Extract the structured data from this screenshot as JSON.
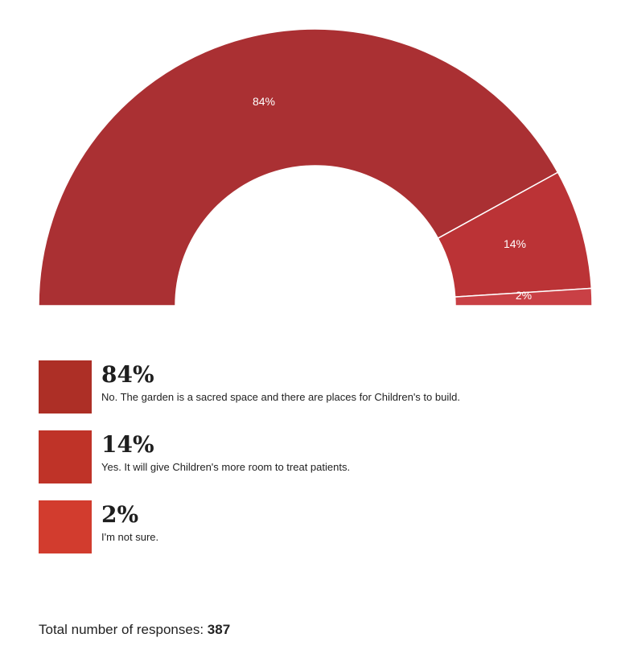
{
  "chart_data": {
    "type": "pie",
    "variant": "semi-donut",
    "slices": [
      {
        "label": "No. The garden is a sacred space and there are places for Children's to build.",
        "value": 84,
        "value_label": "84%",
        "color": "#aa3033",
        "legend_color": "#ad2f26"
      },
      {
        "label": "Yes. It will give Children's more room to treat patients.",
        "value": 14,
        "value_label": "14%",
        "color": "#bb3336",
        "legend_color": "#bf3328"
      },
      {
        "label": "I'm not sure.",
        "value": 2,
        "value_label": "2%",
        "color": "#c94045",
        "legend_color": "#d23c2e"
      }
    ]
  },
  "legend": [
    {
      "pct": "84%",
      "text": "No. The garden is a sacred space and there are places for Children's to build."
    },
    {
      "pct": "14%",
      "text": "Yes. It will give Children's more room to treat patients."
    },
    {
      "pct": "2%",
      "text": "I'm not sure."
    }
  ],
  "total": {
    "label": "Total number of responses:",
    "value": "387"
  }
}
